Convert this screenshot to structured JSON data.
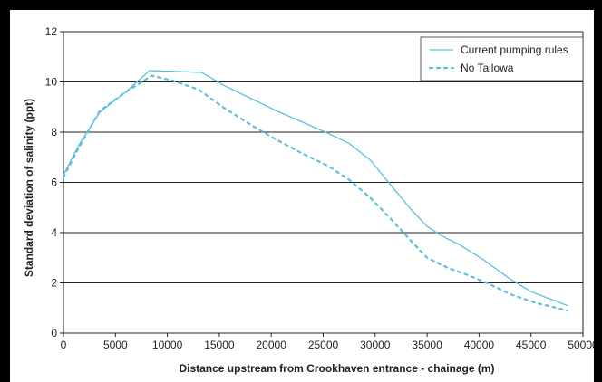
{
  "chart_data": {
    "type": "line",
    "xlabel": "Distance upstream from Crookhaven entrance - chainage (m)",
    "ylabel": "Standard deviation of salinity (ppt)",
    "xlim": [
      0,
      50000
    ],
    "ylim": [
      0,
      12
    ],
    "x_ticks": [
      0,
      5000,
      10000,
      15000,
      20000,
      25000,
      30000,
      35000,
      40000,
      45000,
      50000
    ],
    "y_ticks": [
      0,
      2,
      4,
      6,
      8,
      10,
      12
    ],
    "grid": "horizontal",
    "legend_position": "top-right",
    "series": [
      {
        "name": "Current pumping rules",
        "color": "#5bc0de",
        "style": "solid",
        "x": [
          0,
          1500,
          3500,
          6000,
          8300,
          10500,
          13300,
          15500,
          18000,
          20500,
          23000,
          25500,
          27500,
          29500,
          31500,
          33500,
          35000,
          36500,
          38000,
          40500,
          43000,
          45000,
          48500
        ],
        "y": [
          6.3,
          7.5,
          8.8,
          9.6,
          10.45,
          10.42,
          10.38,
          9.85,
          9.35,
          8.85,
          8.4,
          7.95,
          7.55,
          6.9,
          5.9,
          4.9,
          4.25,
          3.85,
          3.55,
          2.9,
          2.15,
          1.65,
          1.1
        ]
      },
      {
        "name": "No Tallowa",
        "color": "#5bc0de",
        "style": "dotted",
        "x": [
          0,
          1500,
          3500,
          6000,
          8500,
          10500,
          13000,
          15500,
          18000,
          20500,
          23000,
          25500,
          27500,
          29500,
          31500,
          33500,
          35000,
          37000,
          39000,
          41000,
          43000,
          45500,
          48500
        ],
        "y": [
          6.2,
          7.4,
          8.85,
          9.6,
          10.25,
          10.05,
          9.7,
          8.95,
          8.3,
          7.7,
          7.15,
          6.65,
          6.1,
          5.4,
          4.55,
          3.65,
          3.0,
          2.6,
          2.3,
          1.95,
          1.55,
          1.2,
          0.9
        ]
      }
    ]
  }
}
